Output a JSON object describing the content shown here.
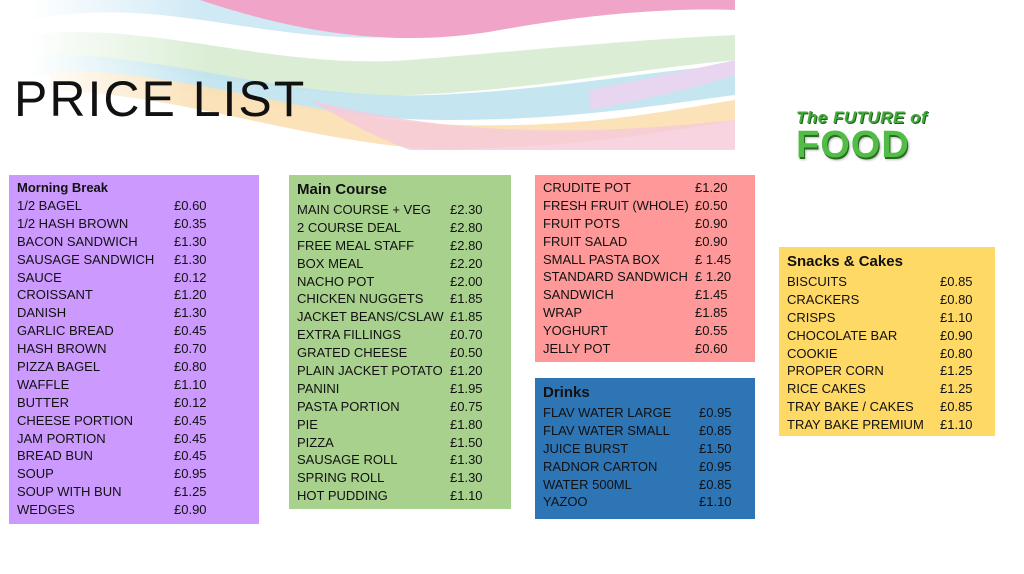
{
  "page": {
    "title": "PRICE LIST"
  },
  "logo": {
    "line1": "The FUTURE of",
    "line2": "FOOD"
  },
  "colors": {
    "morning": "#cc99ff",
    "main": "#a9d18e",
    "fruit": "#ff9999",
    "drinks": "#2e75b6",
    "snacks": "#ffd966"
  },
  "sections": {
    "morning": {
      "heading": "Morning Break",
      "items": [
        {
          "name": "1/2 BAGEL",
          "price": "£0.60"
        },
        {
          "name": "1/2 HASH BROWN",
          "price": "£0.35"
        },
        {
          "name": "BACON SANDWICH",
          "price": "£1.30"
        },
        {
          "name": "SAUSAGE SANDWICH",
          "price": "£1.30"
        },
        {
          "name": "SAUCE",
          "price": "£0.12"
        },
        {
          "name": "CROISSANT",
          "price": "£1.20"
        },
        {
          "name": "DANISH",
          "price": "£1.30"
        },
        {
          "name": "GARLIC BREAD",
          "price": "£0.45"
        },
        {
          "name": "HASH BROWN",
          "price": "£0.70"
        },
        {
          "name": "PIZZA BAGEL",
          "price": "£0.80"
        },
        {
          "name": "WAFFLE",
          "price": "£1.10"
        },
        {
          "name": "BUTTER",
          "price": "£0.12"
        },
        {
          "name": "CHEESE PORTION",
          "price": "£0.45"
        },
        {
          "name": "JAM PORTION",
          "price": "£0.45"
        },
        {
          "name": "BREAD BUN",
          "price": "£0.45"
        },
        {
          "name": "SOUP",
          "price": "£0.95"
        },
        {
          "name": "SOUP WITH BUN",
          "price": "£1.25"
        },
        {
          "name": "WEDGES",
          "price": "£0.90"
        }
      ]
    },
    "main": {
      "heading": "Main Course",
      "items": [
        {
          "name": "MAIN COURSE + VEG",
          "price": "£2.30"
        },
        {
          "name": "2 COURSE DEAL",
          "price": "£2.80"
        },
        {
          "name": "FREE MEAL STAFF",
          "price": "£2.80"
        },
        {
          "name": "BOX MEAL",
          "price": "£2.20"
        },
        {
          "name": "NACHO POT",
          "price": "£2.00"
        },
        {
          "name": "CHICKEN NUGGETS",
          "price": "£1.85"
        },
        {
          "name": "JACKET BEANS/CSLAW",
          "price": "£1.85"
        },
        {
          "name": "EXTRA FILLINGS",
          "price": "£0.70"
        },
        {
          "name": "GRATED CHEESE",
          "price": "£0.50"
        },
        {
          "name": "PLAIN JACKET POTATO",
          "price": "£1.20"
        },
        {
          "name": "PANINI",
          "price": "£1.95"
        },
        {
          "name": "PASTA PORTION",
          "price": "£0.75"
        },
        {
          "name": "PIE",
          "price": "£1.80"
        },
        {
          "name": "PIZZA",
          "price": "£1.50"
        },
        {
          "name": "SAUSAGE ROLL",
          "price": "£1.30"
        },
        {
          "name": "SPRING ROLL",
          "price": "£1.30"
        },
        {
          "name": "HOT PUDDING",
          "price": "£1.10"
        }
      ]
    },
    "fruit": {
      "items": [
        {
          "name": "CRUDITE POT",
          "price": "£1.20"
        },
        {
          "name": "FRESH FRUIT (WHOLE)",
          "price": "£0.50"
        },
        {
          "name": "FRUIT POTS",
          "price": "£0.90"
        },
        {
          "name": "FRUIT SALAD",
          "price": "£0.90"
        },
        {
          "name": "SMALL PASTA BOX",
          "price": "£ 1.45"
        },
        {
          "name": "STANDARD SANDWICH",
          "price": "£ 1.20"
        },
        {
          "name": "SANDWICH",
          "price": "£1.45"
        },
        {
          "name": "WRAP",
          "price": "£1.85"
        },
        {
          "name": "YOGHURT",
          "price": "£0.55"
        },
        {
          "name": "JELLY POT",
          "price": "£0.60"
        }
      ]
    },
    "drinks": {
      "heading": "Drinks",
      "items": [
        {
          "name": "FLAV WATER LARGE",
          "price": "£0.95"
        },
        {
          "name": "FLAV WATER SMALL",
          "price": "£0.85"
        },
        {
          "name": "JUICE BURST",
          "price": "£1.50"
        },
        {
          "name": "RADNOR CARTON",
          "price": "£0.95"
        },
        {
          "name": "WATER 500ML",
          "price": "£0.85"
        },
        {
          "name": "YAZOO",
          "price": "£1.10"
        }
      ]
    },
    "snacks": {
      "heading": "Snacks & Cakes",
      "items": [
        {
          "name": "BISCUITS",
          "price": "£0.85"
        },
        {
          "name": "CRACKERS",
          "price": "£0.80"
        },
        {
          "name": "CRISPS",
          "price": "£1.10"
        },
        {
          "name": "CHOCOLATE BAR",
          "price": "£0.90"
        },
        {
          "name": "COOKIE",
          "price": "£0.80"
        },
        {
          "name": "PROPER CORN",
          "price": "£1.25"
        },
        {
          "name": "RICE CAKES",
          "price": "£1.25"
        },
        {
          "name": "TRAY BAKE / CAKES",
          "price": "£0.85"
        },
        {
          "name": "TRAY BAKE PREMIUM",
          "price": "£1.10"
        }
      ]
    }
  }
}
